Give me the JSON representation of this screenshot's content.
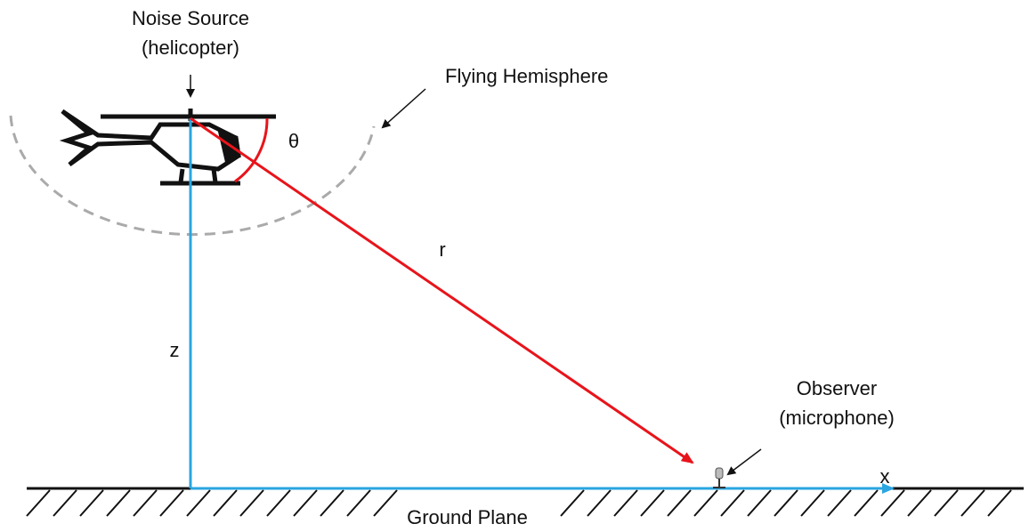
{
  "source": {
    "title": "Noise Source",
    "subtitle": "(helicopter)"
  },
  "hemisphere": {
    "label": "Flying Hemisphere"
  },
  "angle": {
    "label": "θ"
  },
  "distance": {
    "label": "r"
  },
  "height": {
    "label": "z"
  },
  "observer": {
    "title": "Observer",
    "subtitle": "(microphone)"
  },
  "x_axis": {
    "label": "x"
  },
  "ground": {
    "label": "Ground Plane"
  }
}
